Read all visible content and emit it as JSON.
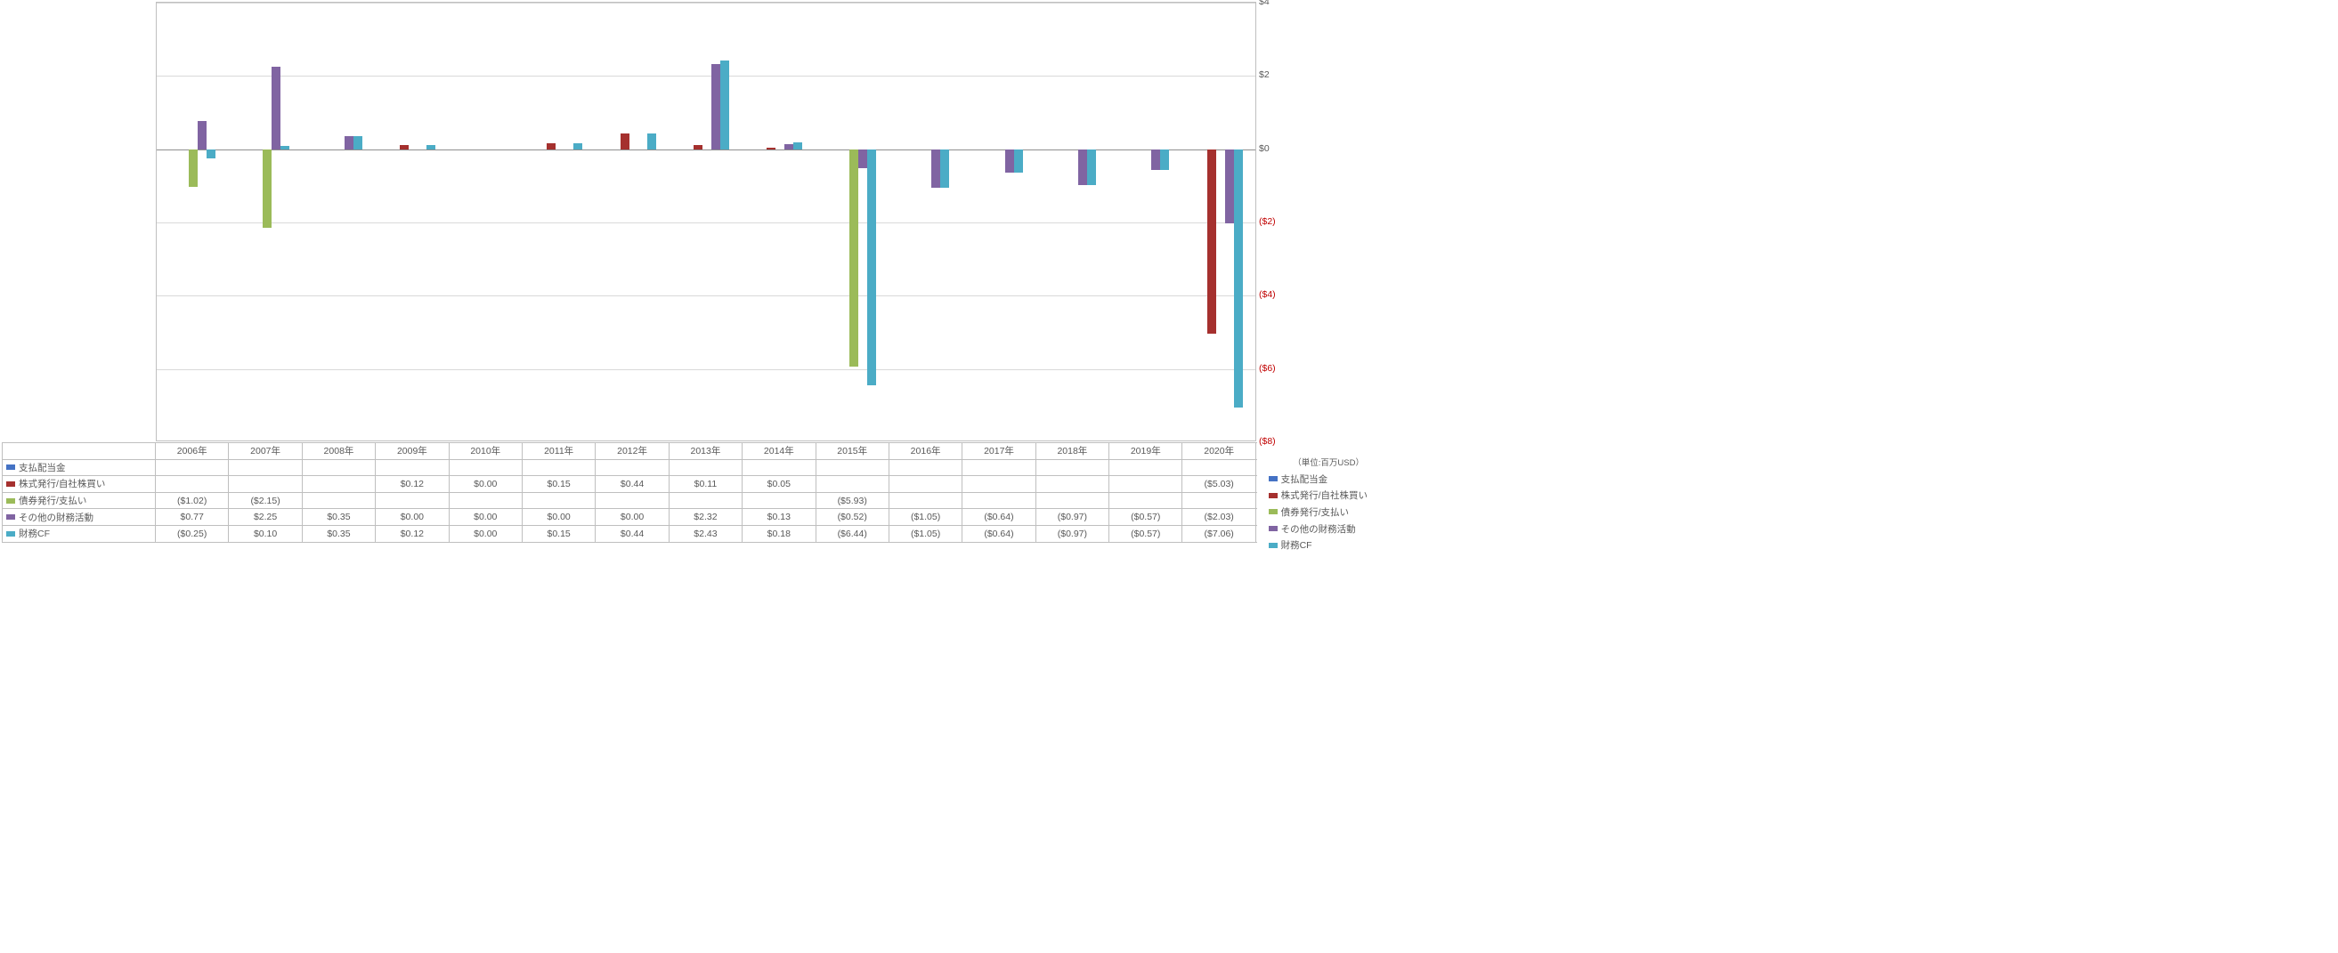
{
  "chart": {
    "type": "bar",
    "categories": [
      "2006年",
      "2007年",
      "2008年",
      "2009年",
      "2010年",
      "2011年",
      "2012年",
      "2013年",
      "2014年",
      "2015年",
      "2016年",
      "2017年",
      "2018年",
      "2019年",
      "2020年"
    ],
    "ylim": [
      -8,
      4
    ],
    "ytick_step": 2,
    "ytick_labels": [
      "$4",
      "$2",
      "$0",
      "($2)",
      "($4)",
      "($6)",
      "($8)"
    ],
    "ytick_values": [
      4,
      2,
      0,
      -2,
      -4,
      -6,
      -8
    ],
    "zero_value": 0,
    "grid_color": "#d9d9d9",
    "axis_color": "#bfbfbf",
    "background_color": "#ffffff",
    "tick_fontsize": 10.5,
    "label_fontsize": 10.5,
    "series": [
      {
        "key": "s0",
        "label": "支払配当金",
        "color": "#4472c4",
        "values": [
          null,
          null,
          null,
          null,
          null,
          null,
          null,
          null,
          null,
          null,
          null,
          null,
          null,
          null,
          null
        ]
      },
      {
        "key": "s1",
        "label": "株式発行/自社株買い",
        "color": "#a5302e",
        "values": [
          null,
          null,
          null,
          0.12,
          0.0,
          0.15,
          0.44,
          0.11,
          0.05,
          null,
          null,
          null,
          null,
          null,
          -5.03
        ]
      },
      {
        "key": "s2",
        "label": "債券発行/支払い",
        "color": "#9bbb59",
        "values": [
          -1.02,
          -2.15,
          null,
          null,
          null,
          null,
          null,
          null,
          null,
          -5.93,
          null,
          null,
          null,
          null,
          null
        ]
      },
      {
        "key": "s3",
        "label": "その他の財務活動",
        "color": "#8064a2",
        "values": [
          0.77,
          2.25,
          0.35,
          0.0,
          0.0,
          0.0,
          0.0,
          2.32,
          0.13,
          -0.52,
          -1.05,
          -0.64,
          -0.97,
          -0.57,
          -2.03
        ]
      },
      {
        "key": "s4",
        "label": "財務CF",
        "color": "#4bacc6",
        "values": [
          -0.25,
          0.1,
          0.35,
          0.12,
          0.0,
          0.15,
          0.44,
          2.43,
          0.18,
          -6.44,
          -1.05,
          -0.64,
          -0.97,
          -0.57,
          -7.06
        ]
      }
    ]
  },
  "unit_label": "（単位:百万USD）",
  "table": {
    "row_labels": [
      "支払配当金",
      "株式発行/自社株買い",
      "債券発行/支払い",
      "その他の財務活動",
      "財務CF"
    ],
    "cells": [
      [
        "",
        "",
        "",
        "",
        "",
        "",
        "",
        "",
        "",
        "",
        "",
        "",
        "",
        "",
        ""
      ],
      [
        "",
        "",
        "",
        "$0.12",
        "$0.00",
        "$0.15",
        "$0.44",
        "$0.11",
        "$0.05",
        "",
        "",
        "",
        "",
        "",
        "($5.03)"
      ],
      [
        "($1.02)",
        "($2.15)",
        "",
        "",
        "",
        "",
        "",
        "",
        "",
        "($5.93)",
        "",
        "",
        "",
        "",
        ""
      ],
      [
        "$0.77",
        "$2.25",
        "$0.35",
        "$0.00",
        "$0.00",
        "$0.00",
        "$0.00",
        "$2.32",
        "$0.13",
        "($0.52)",
        "($1.05)",
        "($0.64)",
        "($0.97)",
        "($0.57)",
        "($2.03)"
      ],
      [
        "($0.25)",
        "$0.10",
        "$0.35",
        "$0.12",
        "$0.00",
        "$0.15",
        "$0.44",
        "$2.43",
        "$0.18",
        "($6.44)",
        "($1.05)",
        "($0.64)",
        "($0.97)",
        "($0.57)",
        "($7.06)"
      ]
    ]
  },
  "legend": {
    "items": [
      {
        "label": "支払配当金",
        "color": "#4472c4"
      },
      {
        "label": "株式発行/自社株買い",
        "color": "#a5302e"
      },
      {
        "label": "債券発行/支払い",
        "color": "#9bbb59"
      },
      {
        "label": "その他の財務活動",
        "color": "#8064a2"
      },
      {
        "label": "財務CF",
        "color": "#4bacc6"
      }
    ]
  }
}
